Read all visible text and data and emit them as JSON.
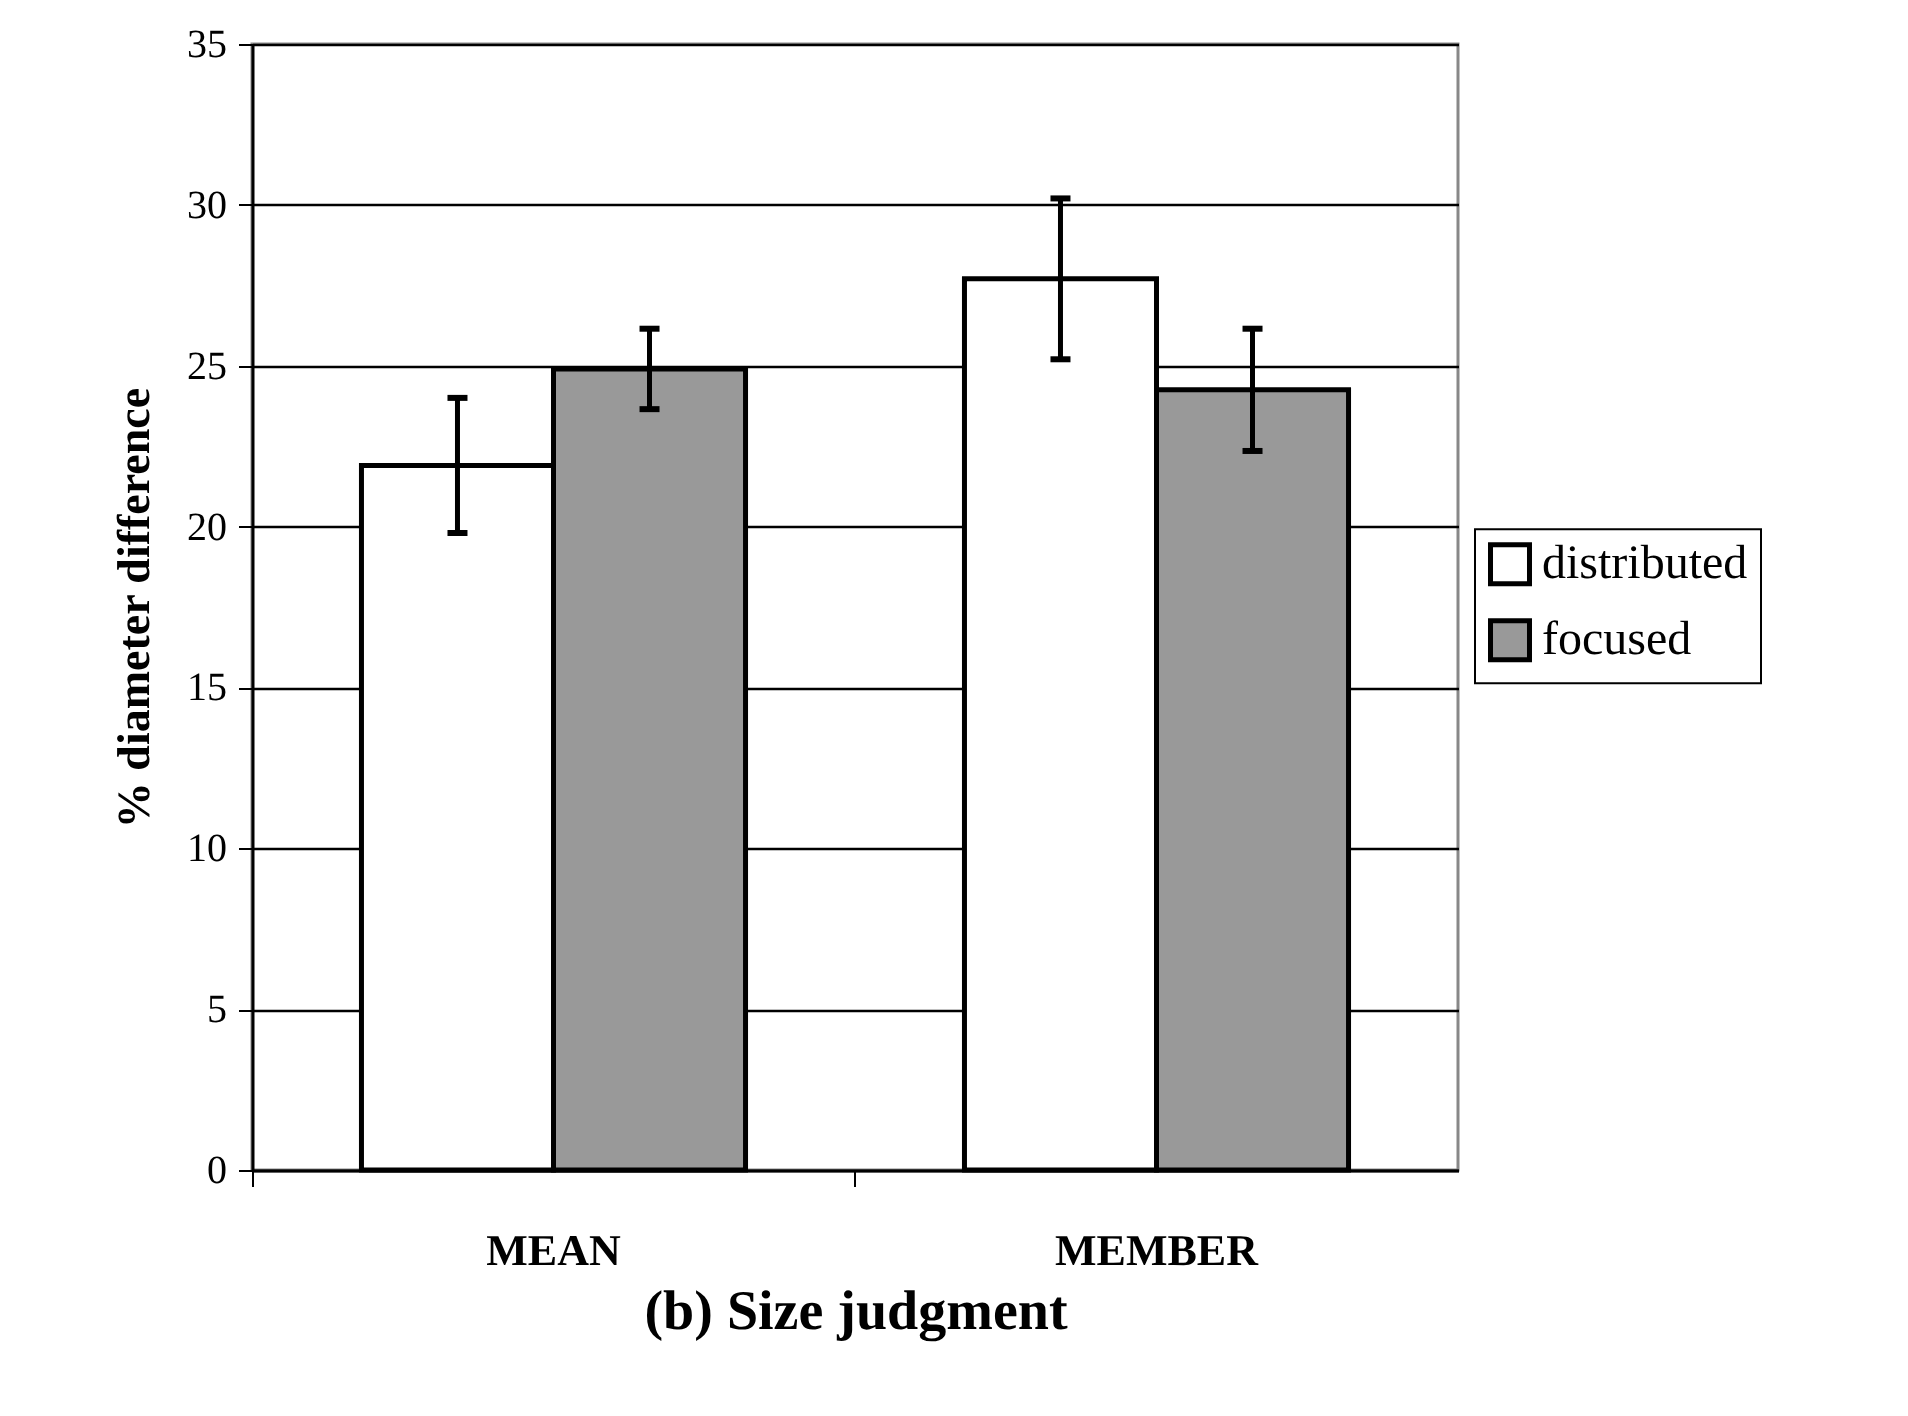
{
  "chart_data": {
    "type": "bar",
    "xlabel": "(b) Size judgment",
    "ylabel": "% diameter difference",
    "categories": [
      "MEAN",
      "MEMBER"
    ],
    "series": [
      {
        "name": "distributed",
        "color": "#ffffff",
        "values": [
          21.9,
          27.7
        ],
        "errors": [
          2.1,
          2.5
        ]
      },
      {
        "name": "focused",
        "color": "#999999",
        "values": [
          24.9,
          24.25
        ],
        "errors": [
          1.25,
          1.9
        ]
      }
    ],
    "ylim": [
      0,
      35
    ],
    "yticks": [
      0,
      5,
      10,
      15,
      20,
      25,
      30,
      35
    ],
    "grid": "y",
    "legend": "right"
  }
}
